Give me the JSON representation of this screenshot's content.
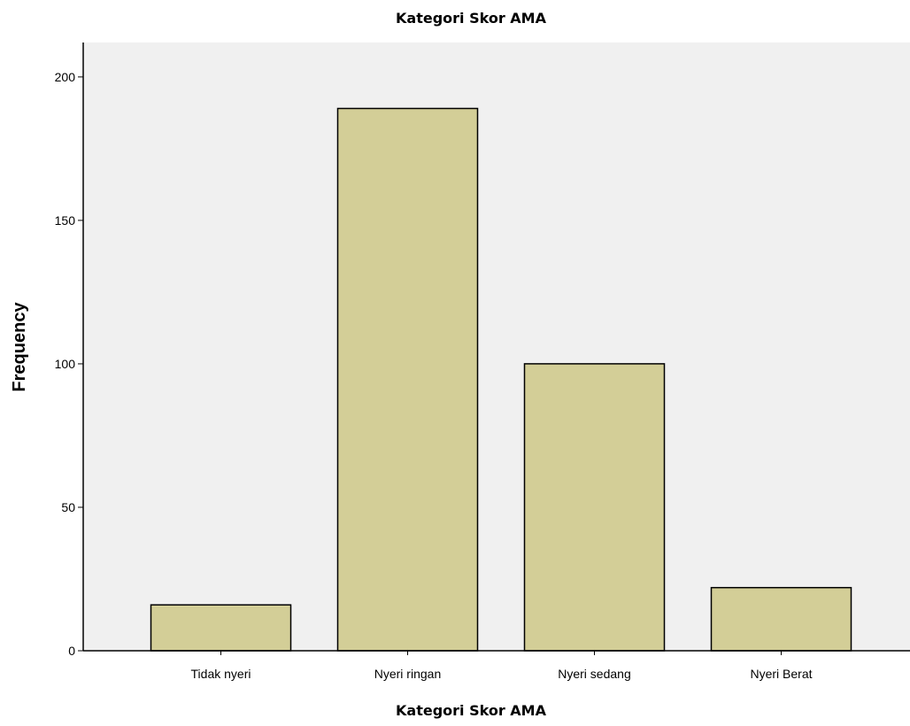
{
  "chart_data": {
    "type": "bar",
    "title": "Kategori Skor AMA",
    "xlabel": "Kategori Skor AMA",
    "ylabel": "Frequency",
    "categories": [
      "Tidak nyeri",
      "Nyeri ringan",
      "Nyeri sedang",
      "Nyeri Berat"
    ],
    "values": [
      16,
      189,
      100,
      22
    ],
    "ylim": [
      0,
      212
    ],
    "yticks": [
      "0",
      "50",
      "100",
      "150",
      "200"
    ],
    "grid": false,
    "legend": "none",
    "colors": {
      "bar_fill": "#d3ce97",
      "bar_stroke": "#000000",
      "plot_background": "#f0f0f0",
      "axis": "#000000"
    }
  }
}
